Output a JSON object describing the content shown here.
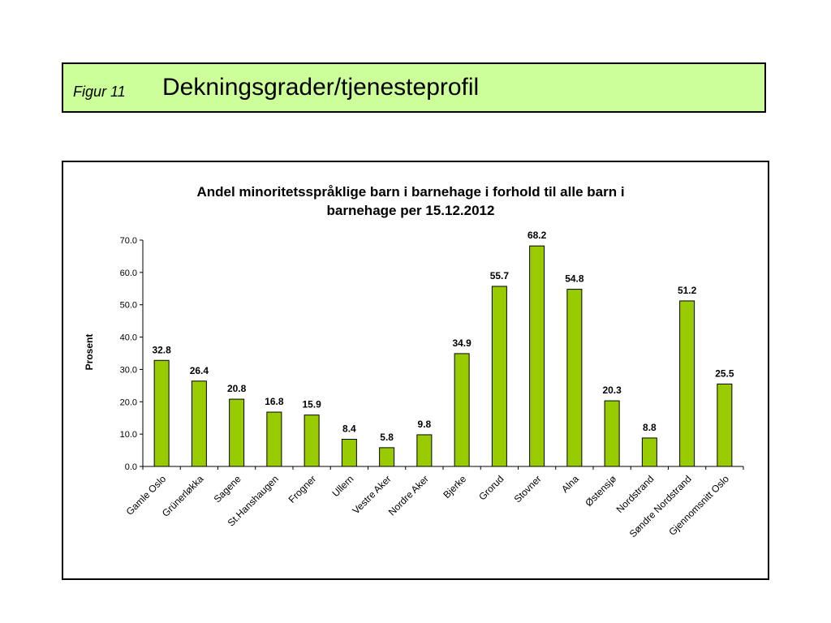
{
  "header": {
    "figure_label": "Figur 11",
    "title": "Dekningsgrader/tjenesteprofil"
  },
  "colors": {
    "header_bg": "#ccff99",
    "bar_fill": "#99cc00"
  },
  "chart_data": {
    "type": "bar",
    "title_lines": [
      "Andel minoritetsspråklige barn i barnehage i forhold til alle barn i",
      "barnehage per 15.12.2012"
    ],
    "ylabel": "Prosent",
    "xlabel": "",
    "ylim": [
      0,
      70
    ],
    "yticks": [
      "0.0",
      "10.0",
      "20.0",
      "30.0",
      "40.0",
      "50.0",
      "60.0",
      "70.0"
    ],
    "grid": false,
    "categories": [
      "Gamle Oslo",
      "Grünerløkka",
      "Sagene",
      "St.Hanshaugen",
      "Frogner",
      "Ullern",
      "Vestre Aker",
      "Nordre Aker",
      "Bjerke",
      "Grorud",
      "Stovner",
      "Alna",
      "Østensjø",
      "Nordstrand",
      "Søndre Nordstrand",
      "Gjennomsnitt Oslo"
    ],
    "values": [
      32.8,
      26.4,
      20.8,
      16.8,
      15.9,
      8.4,
      5.8,
      9.8,
      34.9,
      55.7,
      68.2,
      54.8,
      20.3,
      8.8,
      51.2,
      25.5
    ],
    "value_labels": [
      "32.8",
      "26.4",
      "20.8",
      "16.8",
      "15.9",
      "8.4",
      "5.8",
      "9.8",
      "34.9",
      "55.7",
      "68.2",
      "54.8",
      "20.3",
      "8.8",
      "51.2",
      "25.5"
    ]
  }
}
